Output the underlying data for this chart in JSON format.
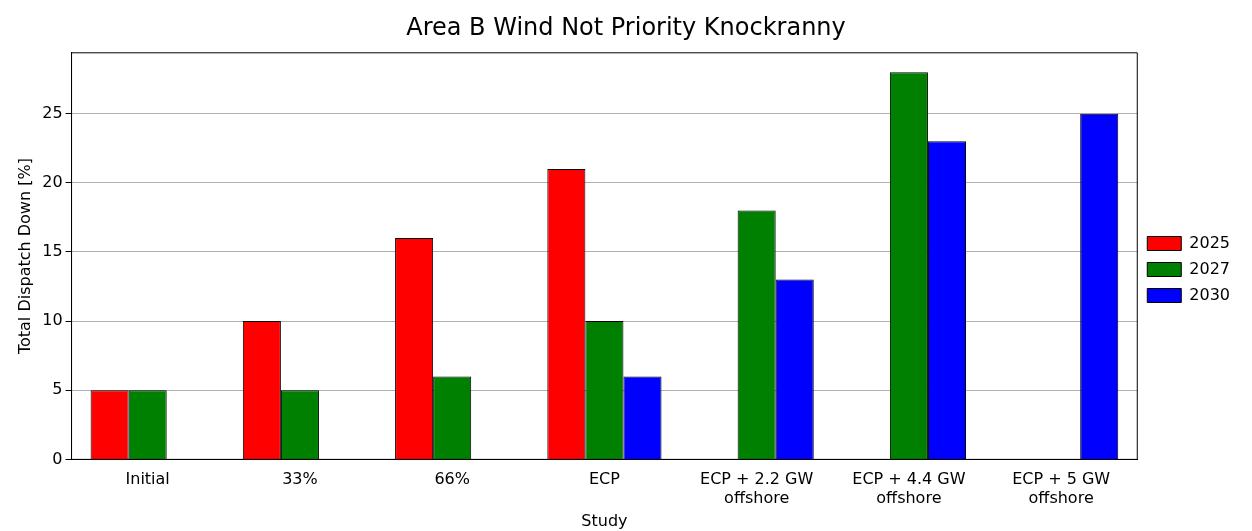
{
  "chart_data": {
    "type": "bar",
    "title": "Area B Wind Not Priority Knockranny",
    "xlabel": "Study",
    "ylabel": "Total Dispatch Down [%]",
    "categories": [
      "Initial",
      "33%",
      "66%",
      "ECP",
      "ECP + 2.2 GW\noffshore",
      "ECP + 4.4 GW\noffshore",
      "ECP + 5 GW\noffshore"
    ],
    "series": [
      {
        "name": "2025",
        "color": "#ff0000",
        "values": [
          5,
          10,
          16,
          21,
          null,
          null,
          null
        ]
      },
      {
        "name": "2027",
        "color": "#008000",
        "values": [
          5,
          5,
          6,
          10,
          18,
          28,
          null
        ]
      },
      {
        "name": "2030",
        "color": "#0000ff",
        "values": [
          null,
          null,
          null,
          6,
          13,
          23,
          25
        ]
      }
    ],
    "ylim": [
      0,
      29.4
    ],
    "yticks": [
      0,
      5,
      10,
      15,
      20,
      25
    ],
    "grid": "y",
    "legend": "right"
  }
}
